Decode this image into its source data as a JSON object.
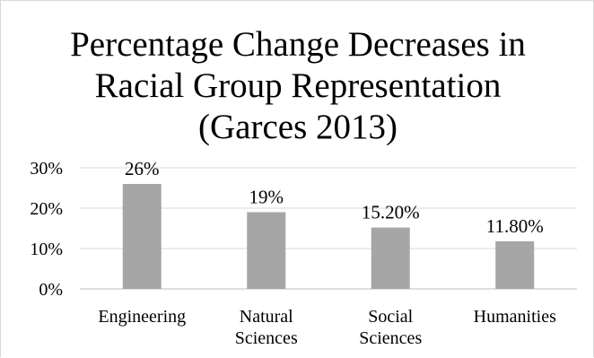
{
  "chart_data": {
    "type": "bar",
    "title_lines": [
      "Percentage Change Decreases in",
      "Racial Group Representation",
      "(Garces 2013)"
    ],
    "categories": [
      [
        "Engineering"
      ],
      [
        "Natural",
        "Sciences"
      ],
      [
        "Social",
        "Sciences"
      ],
      [
        "Humanities"
      ]
    ],
    "values": [
      26,
      19,
      15.2,
      11.8
    ],
    "data_labels": [
      "26%",
      "19%",
      "15.20%",
      "11.80%"
    ],
    "y_ticks": [
      0,
      10,
      20,
      30
    ],
    "y_tick_labels": [
      "0%",
      "10%",
      "20%",
      "30%"
    ],
    "ylim": [
      0,
      30
    ],
    "grid": true,
    "legend": "none",
    "colors": {
      "bar": "#a6a6a6",
      "grid": "#d9d9d9",
      "axis": "#bfbfbf",
      "text": "#000000"
    }
  }
}
